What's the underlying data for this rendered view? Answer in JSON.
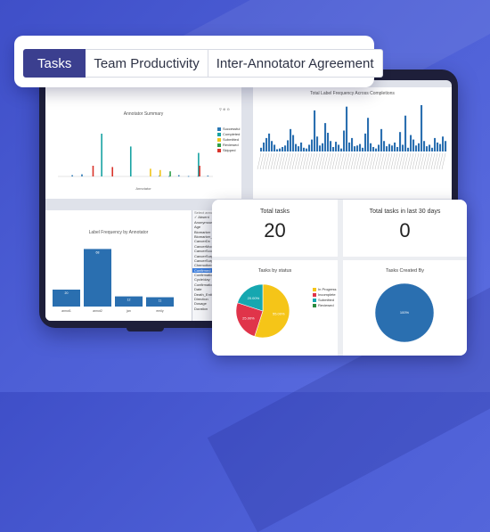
{
  "tabs": [
    {
      "label": "Tasks",
      "active": true
    },
    {
      "label": "Team Productivity",
      "active": false
    },
    {
      "label": "Inter-Annotator Agreement",
      "active": false
    }
  ],
  "panels": {
    "annotator_summary_title": "Annotator Summary",
    "annotator_summary_xlabel": "Annotator",
    "label_frequency_title": "Total Label Frequency Across Completions",
    "label_by_annotator_title": "Label Frequency by Annotator"
  },
  "annotator_legend": [
    {
      "name": "Successful",
      "color": "#2a78b5"
    },
    {
      "name": "Completed",
      "color": "#17a2a2"
    },
    {
      "name": "Submitted",
      "color": "#f0c419"
    },
    {
      "name": "Reviewed",
      "color": "#2fa04a"
    },
    {
      "name": "Skipped",
      "color": "#d9332b"
    }
  ],
  "dropdown": {
    "header": "Select annotators",
    "options": [
      "Absent",
      "Anonymous",
      "Age",
      "Biomarker",
      "Biomarker_Result",
      "CancerDx",
      "CancerModifier",
      "CancerScore",
      "CancerSurgery",
      "CancerSurgery_Type",
      "ChemotherapyDrug",
      "Confirmed",
      "Confirmation",
      "Cycle/day",
      "Confirmation",
      "Date",
      "Death_Entity",
      "Direction",
      "Dosage",
      "Duration"
    ],
    "selected_index": 11
  },
  "stats": {
    "total_tasks_label": "Total tasks",
    "total_tasks_value": "20",
    "last30_label": "Total tasks in last 30 days",
    "last30_value": "0",
    "status_title": "Tasks by status",
    "created_title": "Tasks Created By"
  },
  "status_legend": [
    {
      "name": "In Progress",
      "color": "#f5c518"
    },
    {
      "name": "Incomplete",
      "color": "#e0344a"
    },
    {
      "name": "Submitted",
      "color": "#16a7b0"
    },
    {
      "name": "Reviewed",
      "color": "#2a8a3e"
    }
  ],
  "colors": {
    "bar_blue": "#2a6fb0",
    "accent": "#3b3f8f"
  },
  "chart_data": [
    {
      "type": "bar",
      "title": "Annotator Summary",
      "xlabel": "Annotator",
      "series": [
        {
          "name": "Successful",
          "values": [
            0,
            0.03,
            0.05,
            0,
            0,
            0,
            0,
            0,
            0,
            0,
            0.02,
            0.01,
            0.03,
            0.01,
            0.01,
            0.02
          ]
        },
        {
          "name": "Completed",
          "values": [
            0,
            0,
            0,
            0,
            1.0,
            0,
            0,
            0.7,
            0,
            0,
            0,
            0,
            0,
            0,
            0.55,
            0
          ]
        },
        {
          "name": "Submitted",
          "values": [
            0,
            0,
            0,
            0,
            0,
            0,
            0,
            0,
            0,
            0.18,
            0.15,
            0,
            0,
            0,
            0,
            0
          ]
        },
        {
          "name": "Reviewed",
          "values": [
            0,
            0,
            0,
            0,
            0,
            0,
            0,
            0,
            0,
            0,
            0,
            0.12,
            0,
            0,
            0,
            0
          ]
        },
        {
          "name": "Skipped",
          "values": [
            0,
            0,
            0,
            0.25,
            0,
            0.22,
            0,
            0,
            0,
            0,
            0,
            0,
            0,
            0,
            0.25,
            0
          ]
        }
      ]
    },
    {
      "type": "bar",
      "title": "Total Label Frequency Across Completions",
      "values": [
        5,
        12,
        18,
        24,
        14,
        9,
        3,
        4,
        6,
        8,
        15,
        30,
        22,
        10,
        7,
        12,
        5,
        4,
        9,
        16,
        55,
        20,
        8,
        11,
        38,
        25,
        14,
        6,
        13,
        9,
        4,
        28,
        60,
        12,
        18,
        7,
        8,
        10,
        5,
        24,
        45,
        11,
        6,
        4,
        9,
        30,
        14,
        7,
        10,
        8,
        12,
        6,
        26,
        9,
        48,
        5,
        22,
        16,
        8,
        11,
        62,
        14,
        7,
        9,
        5,
        18,
        12,
        10,
        20,
        14
      ]
    },
    {
      "type": "bar",
      "title": "Label Frequency by Annotator",
      "categories": [
        "annot1",
        "annot2",
        "jan",
        "emily",
        "hist"
      ],
      "values": [
        20,
        68,
        12,
        11,
        12
      ],
      "data_labels": [
        "20",
        "68",
        "12",
        "11",
        "12"
      ],
      "ylim": [
        0,
        80
      ]
    },
    {
      "type": "pie",
      "title": "Tasks by status",
      "slices": [
        {
          "name": "In Progress",
          "value": 55.0
        },
        {
          "name": "Incomplete",
          "value": 25.0
        },
        {
          "name": "Submitted",
          "value": 20.0
        }
      ]
    },
    {
      "type": "pie",
      "title": "Tasks Created By",
      "slices": [
        {
          "name": "",
          "value": 100
        }
      ]
    }
  ]
}
